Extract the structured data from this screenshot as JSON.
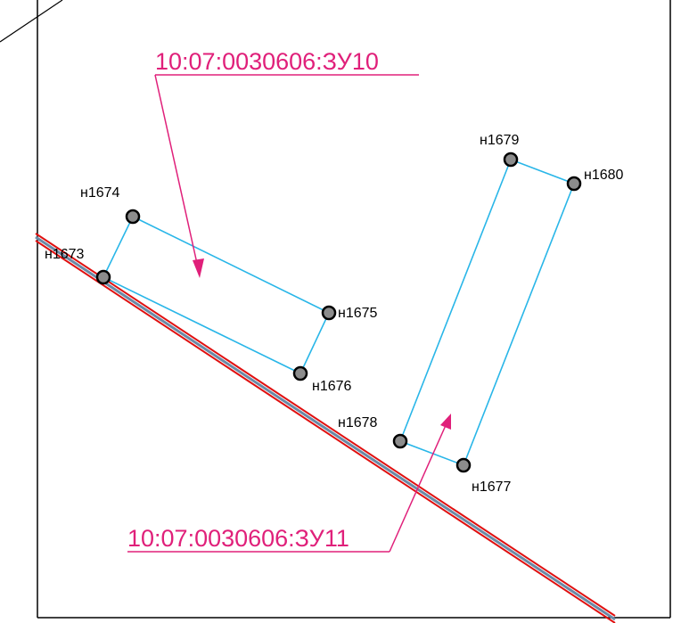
{
  "colors": {
    "frame": "#000000",
    "boundary": "#29b6e8",
    "road_edge": "#e01010",
    "road_center": "#6a8aa6",
    "annotation": "#e0207a",
    "point_fill": "#8c8c8c",
    "point_stroke": "#000000"
  },
  "parcels": [
    {
      "label": "10:07:0030606:ЗУ10",
      "points": [
        "н1673",
        "н1674",
        "н1675",
        "н1676"
      ]
    },
    {
      "label": "10:07:0030606:ЗУ11",
      "points": [
        "н1677",
        "н1678",
        "н1679",
        "н1680"
      ]
    }
  ],
  "points": {
    "p1673": "н1673",
    "p1674": "н1674",
    "p1675": "н1675",
    "p1676": "н1676",
    "p1677": "н1677",
    "p1678": "н1678",
    "p1679": "н1679",
    "p1680": "н1680"
  }
}
